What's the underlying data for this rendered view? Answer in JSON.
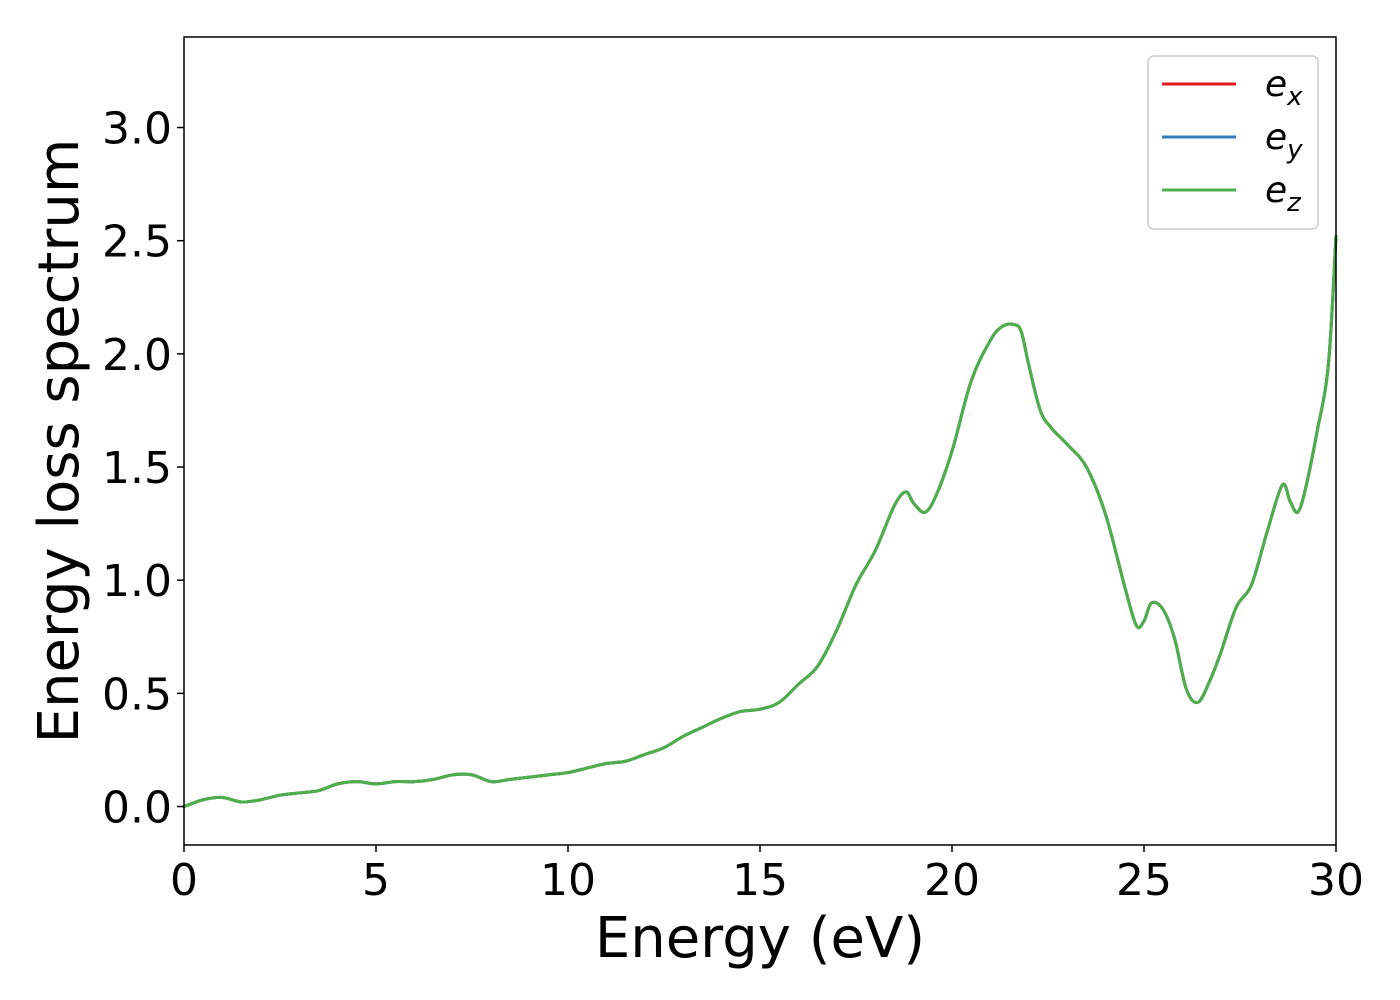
{
  "chart_data": {
    "type": "line",
    "title": "",
    "xlabel": "Energy (eV)",
    "ylabel": "Energy loss spectrum",
    "xlim": [
      0,
      30
    ],
    "ylim": [
      -0.17,
      3.4
    ],
    "xticks": [
      0,
      5,
      10,
      15,
      20,
      25,
      30
    ],
    "xtick_labels": [
      "0",
      "5",
      "10",
      "15",
      "20",
      "25",
      "30"
    ],
    "yticks": [
      0.0,
      0.5,
      1.0,
      1.5,
      2.0,
      2.5,
      3.0
    ],
    "ytick_labels": [
      "0.0",
      "0.5",
      "1.0",
      "1.5",
      "2.0",
      "2.5",
      "3.0"
    ],
    "grid": false,
    "legend_position": "top-right",
    "series": [
      {
        "name": "e_x",
        "label_base": "e",
        "label_sub": "x",
        "color": "#e41a1c",
        "x": [
          0,
          0.5,
          1.0,
          1.5,
          2.0,
          2.5,
          3.0,
          3.5,
          4.0,
          4.5,
          5.0,
          5.5,
          6.0,
          6.5,
          7.0,
          7.5,
          8.0,
          8.5,
          9.0,
          9.5,
          10.0,
          10.5,
          11.0,
          11.5,
          12.0,
          12.5,
          13.0,
          13.5,
          14.0,
          14.5,
          15.0,
          15.5,
          16.0,
          16.5,
          17.0,
          17.5,
          18.0,
          18.5,
          18.8,
          19.0,
          19.3,
          19.6,
          20.0,
          20.5,
          21.0,
          21.3,
          21.6,
          21.8,
          22.0,
          22.3,
          22.6,
          23.0,
          23.5,
          24.0,
          24.5,
          24.8,
          25.0,
          25.2,
          25.5,
          25.8,
          26.1,
          26.4,
          26.7,
          27.0,
          27.4,
          27.8,
          28.2,
          28.6,
          28.8,
          29.0,
          29.2,
          29.5,
          29.8,
          30.0
        ],
        "y": [
          0.0,
          0.03,
          0.04,
          0.02,
          0.03,
          0.05,
          0.06,
          0.07,
          0.1,
          0.11,
          0.1,
          0.11,
          0.11,
          0.12,
          0.14,
          0.14,
          0.11,
          0.12,
          0.13,
          0.14,
          0.15,
          0.17,
          0.19,
          0.2,
          0.23,
          0.26,
          0.31,
          0.35,
          0.39,
          0.42,
          0.43,
          0.46,
          0.54,
          0.62,
          0.78,
          0.98,
          1.13,
          1.33,
          1.39,
          1.34,
          1.3,
          1.38,
          1.57,
          1.88,
          2.06,
          2.12,
          2.13,
          2.1,
          1.95,
          1.75,
          1.67,
          1.6,
          1.5,
          1.29,
          0.97,
          0.8,
          0.82,
          0.9,
          0.87,
          0.74,
          0.52,
          0.46,
          0.55,
          0.68,
          0.88,
          0.98,
          1.21,
          1.42,
          1.35,
          1.3,
          1.4,
          1.65,
          1.95,
          2.52
        ]
      },
      {
        "name": "e_y",
        "label_base": "e",
        "label_sub": "y",
        "color": "#377eb8",
        "x": [
          0,
          0.5,
          1.0,
          1.5,
          2.0,
          2.5,
          3.0,
          3.5,
          4.0,
          4.5,
          5.0,
          5.5,
          6.0,
          6.5,
          7.0,
          7.5,
          8.0,
          8.5,
          9.0,
          9.5,
          10.0,
          10.5,
          11.0,
          11.5,
          12.0,
          12.5,
          13.0,
          13.5,
          14.0,
          14.5,
          15.0,
          15.5,
          16.0,
          16.5,
          17.0,
          17.5,
          18.0,
          18.5,
          18.8,
          19.0,
          19.3,
          19.6,
          20.0,
          20.5,
          21.0,
          21.3,
          21.6,
          21.8,
          22.0,
          22.3,
          22.6,
          23.0,
          23.5,
          24.0,
          24.5,
          24.8,
          25.0,
          25.2,
          25.5,
          25.8,
          26.1,
          26.4,
          26.7,
          27.0,
          27.4,
          27.8,
          28.2,
          28.6,
          28.8,
          29.0,
          29.2,
          29.5,
          29.8,
          30.0
        ],
        "y": [
          0.0,
          0.03,
          0.04,
          0.02,
          0.03,
          0.05,
          0.06,
          0.07,
          0.1,
          0.11,
          0.1,
          0.11,
          0.11,
          0.12,
          0.14,
          0.14,
          0.11,
          0.12,
          0.13,
          0.14,
          0.15,
          0.17,
          0.19,
          0.2,
          0.23,
          0.26,
          0.31,
          0.35,
          0.39,
          0.42,
          0.43,
          0.46,
          0.54,
          0.62,
          0.78,
          0.98,
          1.13,
          1.33,
          1.39,
          1.34,
          1.3,
          1.38,
          1.57,
          1.88,
          2.06,
          2.12,
          2.13,
          2.1,
          1.95,
          1.75,
          1.67,
          1.6,
          1.5,
          1.29,
          0.97,
          0.8,
          0.82,
          0.9,
          0.87,
          0.74,
          0.52,
          0.46,
          0.55,
          0.68,
          0.88,
          0.98,
          1.21,
          1.42,
          1.35,
          1.3,
          1.4,
          1.65,
          1.95,
          2.52
        ]
      },
      {
        "name": "e_z",
        "label_base": "e",
        "label_sub": "z",
        "color": "#4daf4a",
        "x": [
          0,
          0.5,
          1.0,
          1.5,
          2.0,
          2.5,
          3.0,
          3.5,
          4.0,
          4.5,
          5.0,
          5.5,
          6.0,
          6.5,
          7.0,
          7.5,
          8.0,
          8.5,
          9.0,
          9.5,
          10.0,
          10.5,
          11.0,
          11.5,
          12.0,
          12.5,
          13.0,
          13.5,
          14.0,
          14.5,
          15.0,
          15.5,
          16.0,
          16.5,
          17.0,
          17.5,
          18.0,
          18.5,
          18.8,
          19.0,
          19.3,
          19.6,
          20.0,
          20.5,
          21.0,
          21.3,
          21.6,
          21.8,
          22.0,
          22.3,
          22.6,
          23.0,
          23.5,
          24.0,
          24.5,
          24.8,
          25.0,
          25.2,
          25.5,
          25.8,
          26.1,
          26.4,
          26.7,
          27.0,
          27.4,
          27.8,
          28.2,
          28.6,
          28.8,
          29.0,
          29.2,
          29.5,
          29.8,
          30.0
        ],
        "y": [
          0.0,
          0.03,
          0.04,
          0.02,
          0.03,
          0.05,
          0.06,
          0.07,
          0.1,
          0.11,
          0.1,
          0.11,
          0.11,
          0.12,
          0.14,
          0.14,
          0.11,
          0.12,
          0.13,
          0.14,
          0.15,
          0.17,
          0.19,
          0.2,
          0.23,
          0.26,
          0.31,
          0.35,
          0.39,
          0.42,
          0.43,
          0.46,
          0.54,
          0.62,
          0.78,
          0.98,
          1.13,
          1.33,
          1.39,
          1.34,
          1.3,
          1.38,
          1.57,
          1.88,
          2.06,
          2.12,
          2.13,
          2.1,
          1.95,
          1.75,
          1.67,
          1.6,
          1.5,
          1.29,
          0.97,
          0.8,
          0.82,
          0.9,
          0.87,
          0.74,
          0.52,
          0.46,
          0.55,
          0.68,
          0.88,
          0.98,
          1.21,
          1.42,
          1.35,
          1.3,
          1.4,
          1.65,
          1.95,
          2.52
        ]
      }
    ]
  }
}
